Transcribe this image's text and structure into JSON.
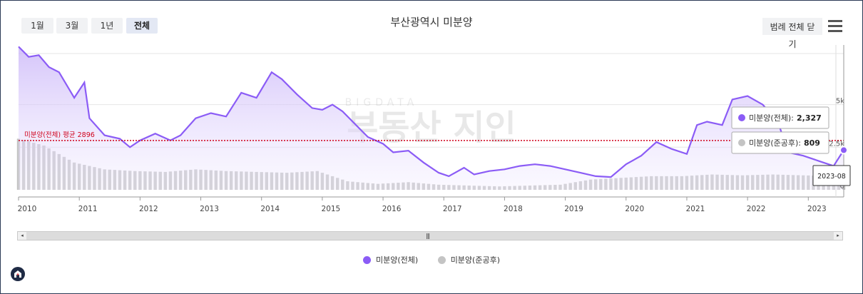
{
  "toolbar": {
    "range_buttons": [
      "1월",
      "3월",
      "1년",
      "전체"
    ],
    "active_range": "전체",
    "legend_toggle_label": "범례 전체 닫기"
  },
  "colors": {
    "total_series": "#8b5cf6",
    "completed_series": "#c4c4c4",
    "average_line": "#d0021b"
  },
  "chart_data": {
    "type": "line",
    "title": "부산광역시 미분양",
    "x_range": [
      "2010-01",
      "2023-08"
    ],
    "x_ticks": [
      "2010",
      "2011",
      "2012",
      "2013",
      "2014",
      "2015",
      "2016",
      "2017",
      "2018",
      "2019",
      "2020",
      "2021",
      "2022",
      "2023"
    ],
    "y_ticks": [
      "5k",
      "2.5k",
      "0"
    ],
    "ylim": [
      0,
      8500
    ],
    "grid": true,
    "legend_position": "bottom",
    "average": {
      "label": "미분양(전체) 평균 2896",
      "value": 2896
    },
    "series": [
      {
        "name": "미분양(전체)",
        "type": "area",
        "points": [
          [
            "2010-01",
            8400
          ],
          [
            "2010-03",
            7800
          ],
          [
            "2010-05",
            7900
          ],
          [
            "2010-07",
            7200
          ],
          [
            "2010-09",
            6900
          ],
          [
            "2010-12",
            5400
          ],
          [
            "2011-02",
            6300
          ],
          [
            "2011-03",
            4200
          ],
          [
            "2011-06",
            3200
          ],
          [
            "2011-09",
            3000
          ],
          [
            "2011-11",
            2500
          ],
          [
            "2012-01",
            2900
          ],
          [
            "2012-04",
            3300
          ],
          [
            "2012-07",
            2900
          ],
          [
            "2012-09",
            3200
          ],
          [
            "2012-12",
            4200
          ],
          [
            "2013-03",
            4500
          ],
          [
            "2013-06",
            4300
          ],
          [
            "2013-09",
            5700
          ],
          [
            "2013-12",
            5400
          ],
          [
            "2014-03",
            6900
          ],
          [
            "2014-05",
            6500
          ],
          [
            "2014-08",
            5600
          ],
          [
            "2014-11",
            4800
          ],
          [
            "2015-01",
            4700
          ],
          [
            "2015-03",
            5000
          ],
          [
            "2015-05",
            4600
          ],
          [
            "2015-07",
            4000
          ],
          [
            "2015-10",
            3100
          ],
          [
            "2016-01",
            2700
          ],
          [
            "2016-03",
            2200
          ],
          [
            "2016-06",
            2300
          ],
          [
            "2016-09",
            1600
          ],
          [
            "2016-12",
            1000
          ],
          [
            "2017-02",
            800
          ],
          [
            "2017-05",
            1300
          ],
          [
            "2017-07",
            900
          ],
          [
            "2017-10",
            1100
          ],
          [
            "2018-01",
            1200
          ],
          [
            "2018-04",
            1400
          ],
          [
            "2018-07",
            1500
          ],
          [
            "2018-10",
            1400
          ],
          [
            "2019-01",
            1200
          ],
          [
            "2019-04",
            1000
          ],
          [
            "2019-07",
            800
          ],
          [
            "2019-10",
            750
          ],
          [
            "2020-01",
            1500
          ],
          [
            "2020-04",
            2000
          ],
          [
            "2020-07",
            2800
          ],
          [
            "2020-10",
            2400
          ],
          [
            "2021-01",
            2100
          ],
          [
            "2021-03",
            3800
          ],
          [
            "2021-05",
            4000
          ],
          [
            "2021-08",
            3800
          ],
          [
            "2021-10",
            5300
          ],
          [
            "2022-01",
            5500
          ],
          [
            "2022-04",
            5000
          ],
          [
            "2022-07",
            4000
          ],
          [
            "2022-09",
            2200
          ],
          [
            "2022-12",
            2000
          ],
          [
            "2023-03",
            1700
          ],
          [
            "2023-06",
            1400
          ],
          [
            "2023-08",
            2327
          ]
        ]
      },
      {
        "name": "미분양(준공후)",
        "type": "bar",
        "points": [
          [
            "2010-01",
            3000
          ],
          [
            "2010-06",
            2600
          ],
          [
            "2010-12",
            1600
          ],
          [
            "2011-06",
            1200
          ],
          [
            "2011-12",
            1100
          ],
          [
            "2012-06",
            1050
          ],
          [
            "2012-12",
            1200
          ],
          [
            "2013-06",
            1100
          ],
          [
            "2013-12",
            1050
          ],
          [
            "2014-06",
            1000
          ],
          [
            "2014-12",
            1100
          ],
          [
            "2015-06",
            500
          ],
          [
            "2015-12",
            350
          ],
          [
            "2016-06",
            450
          ],
          [
            "2016-12",
            300
          ],
          [
            "2017-06",
            250
          ],
          [
            "2017-12",
            200
          ],
          [
            "2018-06",
            250
          ],
          [
            "2018-12",
            300
          ],
          [
            "2019-06",
            600
          ],
          [
            "2019-12",
            700
          ],
          [
            "2020-06",
            800
          ],
          [
            "2020-12",
            800
          ],
          [
            "2021-06",
            900
          ],
          [
            "2021-12",
            850
          ],
          [
            "2022-06",
            900
          ],
          [
            "2022-12",
            850
          ],
          [
            "2023-06",
            800
          ],
          [
            "2023-08",
            809
          ]
        ]
      }
    ],
    "tooltip": {
      "total_label": "미분양(전체):",
      "total_value": "2,327",
      "completed_label": "미분양(준공후):",
      "completed_value": "809",
      "date_label": "2023-08"
    }
  },
  "scrollbar": {
    "left_arrow": "◂",
    "right_arrow": "▸",
    "grip": "|||"
  },
  "watermark": {
    "top": "BIGDATA",
    "bottom": "부동산 지인"
  },
  "brand_icon": "house-logo-icon"
}
